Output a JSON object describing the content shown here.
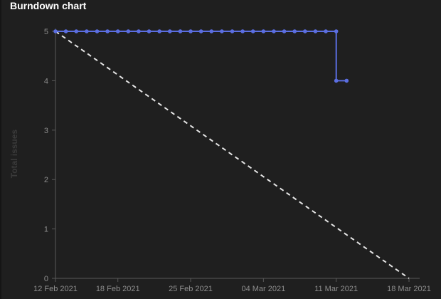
{
  "panel": {
    "title": "Burndown chart"
  },
  "chart_data": {
    "type": "line",
    "title": "Burndown chart",
    "ylabel": "Total issues",
    "xlabel": "",
    "x_tick_labels": [
      "12 Feb 2021",
      "18 Feb 2021",
      "25 Feb 2021",
      "04 Mar 2021",
      "11 Mar 2021",
      "18 Mar 2021"
    ],
    "x_ticks": [
      "2021-02-12",
      "2021-02-18",
      "2021-02-25",
      "2021-03-04",
      "2021-03-11",
      "2021-03-18"
    ],
    "xlim": [
      "2021-02-12",
      "2021-03-18"
    ],
    "y_ticks": [
      0,
      1,
      2,
      3,
      4,
      5
    ],
    "ylim": [
      0,
      5
    ],
    "grid": false,
    "series": [
      {
        "color": "#5b6ee1",
        "style": "solid-markers",
        "x": [
          "2021-02-12",
          "2021-02-13",
          "2021-02-14",
          "2021-02-15",
          "2021-02-16",
          "2021-02-17",
          "2021-02-18",
          "2021-02-19",
          "2021-02-20",
          "2021-02-21",
          "2021-02-22",
          "2021-02-23",
          "2021-02-24",
          "2021-02-25",
          "2021-02-26",
          "2021-02-27",
          "2021-02-28",
          "2021-03-01",
          "2021-03-02",
          "2021-03-03",
          "2021-03-04",
          "2021-03-05",
          "2021-03-06",
          "2021-03-07",
          "2021-03-08",
          "2021-03-09",
          "2021-03-10",
          "2021-03-11",
          "2021-03-11",
          "2021-03-12"
        ],
        "y": [
          5,
          5,
          5,
          5,
          5,
          5,
          5,
          5,
          5,
          5,
          5,
          5,
          5,
          5,
          5,
          5,
          5,
          5,
          5,
          5,
          5,
          5,
          5,
          5,
          5,
          5,
          5,
          5,
          4,
          4
        ]
      },
      {
        "color": "#e6e6e6",
        "style": "dashed",
        "x": [
          "2021-02-12",
          "2021-03-18"
        ],
        "y": [
          5,
          0
        ]
      }
    ]
  }
}
